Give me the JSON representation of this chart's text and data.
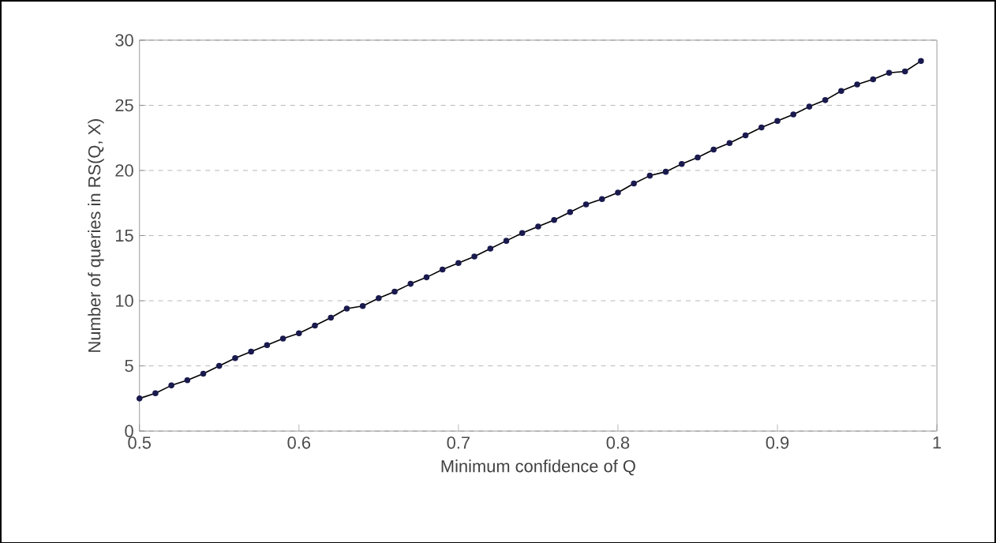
{
  "chart_data": {
    "type": "line",
    "xlabel": "Minimum confidence of Q",
    "ylabel": "Number of queries in RS(Q, X)",
    "x": [
      0.5,
      0.51,
      0.52,
      0.53,
      0.54,
      0.55,
      0.56,
      0.57,
      0.58,
      0.59,
      0.6,
      0.61,
      0.62,
      0.63,
      0.64,
      0.65,
      0.66,
      0.67,
      0.68,
      0.69,
      0.7,
      0.71,
      0.72,
      0.73,
      0.74,
      0.75,
      0.76,
      0.77,
      0.78,
      0.79,
      0.8,
      0.81,
      0.82,
      0.83,
      0.84,
      0.85,
      0.86,
      0.87,
      0.88,
      0.89,
      0.9,
      0.91,
      0.92,
      0.93,
      0.94,
      0.95,
      0.96,
      0.97,
      0.98,
      0.99
    ],
    "series": [
      {
        "color": "#1a1a4e",
        "values": [
          2.5,
          2.9,
          3.5,
          3.9,
          4.4,
          5.0,
          5.6,
          6.1,
          6.6,
          7.1,
          7.5,
          8.1,
          8.7,
          9.4,
          9.6,
          10.2,
          10.7,
          11.3,
          11.8,
          12.4,
          12.9,
          13.4,
          14.0,
          14.6,
          15.2,
          15.7,
          16.2,
          16.8,
          17.4,
          17.8,
          18.3,
          19.0,
          19.6,
          19.9,
          20.5,
          21.0,
          21.6,
          22.1,
          22.7,
          23.3,
          23.8,
          24.3,
          24.9,
          25.4,
          26.1,
          26.6,
          27.0,
          27.5,
          27.6,
          28.4
        ]
      }
    ],
    "xlim": [
      0.5,
      1
    ],
    "ylim": [
      0,
      30
    ],
    "xticks": [
      0.5,
      0.6,
      0.7,
      0.8,
      0.9,
      1
    ],
    "yticks": [
      0,
      5,
      10,
      15,
      20,
      25,
      30
    ],
    "grid": "y",
    "marker": "circle",
    "line_style": "solid"
  }
}
